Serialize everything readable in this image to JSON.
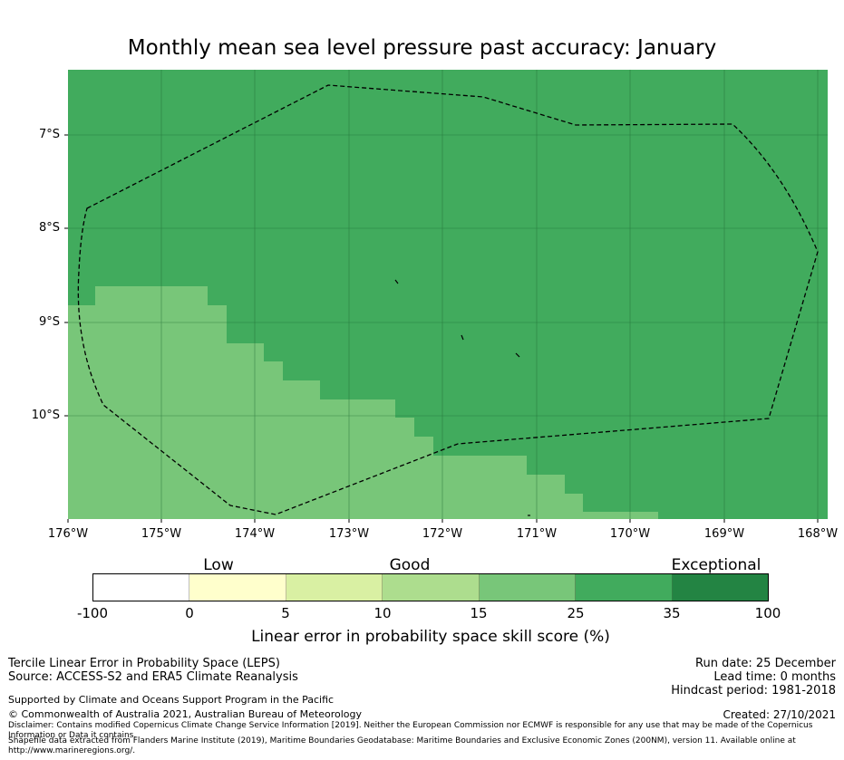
{
  "title": "Monthly mean sea level pressure past accuracy: January",
  "map": {
    "lat_labels": [
      "7°S",
      "8°S",
      "9°S",
      "10°S"
    ],
    "lon_labels": [
      "176°W",
      "175°W",
      "174°W",
      "173°W",
      "172°W",
      "171°W",
      "170°W",
      "169°W",
      "168°W"
    ],
    "background_color": "#41ab5d",
    "low_skill_color": "#78c679"
  },
  "legend": {
    "categories": [
      "Low",
      "Good",
      "Exceptional"
    ],
    "ticks": [
      "-100",
      "0",
      "5",
      "10",
      "15",
      "25",
      "35",
      "100"
    ],
    "colors": [
      "#ffffff",
      "#ffffcc",
      "#d9f0a3",
      "#addd8e",
      "#78c679",
      "#41ab5d",
      "#238443"
    ],
    "label": "Linear error in probability space skill score (%)"
  },
  "footer": {
    "left_line1": "Tercile Linear Error in Probability Space (LEPS)",
    "left_line2": "Source: ACCESS-S2 and ERA5 Climate Reanalysis",
    "support": "Supported by Climate and Oceans Support Program in the Pacific",
    "copyright": "© Commonwealth of Australia 2021, Australian Bureau of Meteorology",
    "disclaimer": "Disclaimer: Contains modified Copernicus Climate Change Service Information [2019]. Neither the European Commission nor ECMWF is responsible for any use that may be made of the Copernicus Information or Data it contains.",
    "shapefile": "Shapefile data extracted from Flanders Marine Institute (2019), Maritime Boundaries Geodatabase: Maritime Boundaries and Exclusive Economic Zones (200NM), version 11. Available online at http://www.marineregions.org/.",
    "run_date": "Run date: 25 December",
    "lead_time": "Lead time: 0 months",
    "hindcast": "Hindcast period: 1981-2018",
    "created": "Created: 27/10/2021"
  }
}
